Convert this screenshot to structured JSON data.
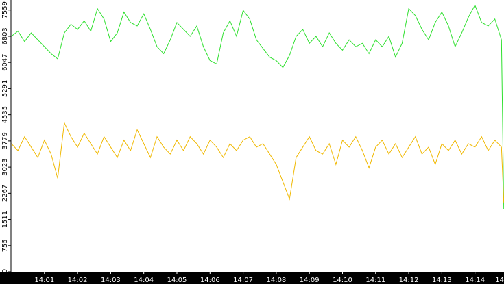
{
  "chart_data": {
    "type": "line",
    "x": [
      0,
      0.2,
      0.4,
      0.6,
      0.8,
      1.0,
      1.2,
      1.4,
      1.6,
      1.8,
      2.0,
      2.2,
      2.4,
      2.6,
      2.8,
      3.0,
      3.2,
      3.4,
      3.6,
      3.8,
      4.0,
      4.2,
      4.4,
      4.6,
      4.8,
      5.0,
      5.2,
      5.4,
      5.6,
      5.8,
      6.0,
      6.2,
      6.4,
      6.6,
      6.8,
      7.0,
      7.2,
      7.4,
      7.6,
      7.8,
      8.0,
      8.2,
      8.4,
      8.6,
      8.8,
      9.0,
      9.2,
      9.4,
      9.6,
      9.8,
      10.0,
      10.2,
      10.4,
      10.6,
      10.8,
      11.0,
      11.2,
      11.4,
      11.6,
      11.8,
      12.0,
      12.2,
      12.4,
      12.6,
      12.8,
      13.0,
      13.2,
      13.4,
      13.6,
      13.8,
      14.0,
      14.2,
      14.4,
      14.6,
      14.8,
      14.87
    ],
    "series": [
      {
        "color": "#2ee02e",
        "values": [
          6800,
          6950,
          6650,
          6900,
          6700,
          6500,
          6300,
          6150,
          6900,
          7150,
          7000,
          7250,
          6950,
          7600,
          7300,
          6650,
          6900,
          7500,
          7200,
          7100,
          7450,
          7000,
          6500,
          6300,
          6700,
          7200,
          7000,
          6800,
          7100,
          6500,
          6100,
          6000,
          6900,
          7250,
          6800,
          7550,
          7300,
          6700,
          6450,
          6200,
          6100,
          5900,
          6250,
          6800,
          7000,
          6600,
          6800,
          6500,
          6900,
          6600,
          6400,
          6700,
          6500,
          6600,
          6300,
          6700,
          6500,
          6800,
          6200,
          6600,
          7600,
          7400,
          7000,
          6700,
          7200,
          7500,
          7100,
          6500,
          6900,
          7350,
          7700,
          7200,
          7100,
          7300,
          6700,
          1800
        ]
      },
      {
        "color": "#f0b800",
        "values": [
          3700,
          3500,
          3900,
          3600,
          3300,
          3800,
          3400,
          2700,
          4300,
          3900,
          3600,
          4000,
          3700,
          3400,
          3900,
          3600,
          3300,
          3800,
          3500,
          4100,
          3700,
          3300,
          3900,
          3600,
          3400,
          3800,
          3500,
          3900,
          3700,
          3400,
          3800,
          3600,
          3300,
          3700,
          3500,
          3800,
          3900,
          3600,
          3700,
          3400,
          3100,
          2600,
          2100,
          3300,
          3600,
          3900,
          3500,
          3400,
          3700,
          3100,
          3800,
          3600,
          3900,
          3500,
          3000,
          3600,
          3800,
          3400,
          3700,
          3300,
          3600,
          3900,
          3400,
          3600,
          3100,
          3700,
          3500,
          3800,
          3400,
          3700,
          3600,
          3900,
          3500,
          3800,
          3600,
          2000
        ]
      }
    ],
    "xlim": [
      0,
      14.87
    ],
    "xticks": [
      {
        "value": 1,
        "label": "14:01"
      },
      {
        "value": 2,
        "label": "14:02"
      },
      {
        "value": 3,
        "label": "14:03"
      },
      {
        "value": 4,
        "label": "14:04"
      },
      {
        "value": 5,
        "label": "14:05"
      },
      {
        "value": 6,
        "label": "14:06"
      },
      {
        "value": 7,
        "label": "14:07"
      },
      {
        "value": 8,
        "label": "14:08"
      },
      {
        "value": 9,
        "label": "14:09"
      },
      {
        "value": 10,
        "label": "14:10"
      },
      {
        "value": 11,
        "label": "14:11"
      },
      {
        "value": 12,
        "label": "14:12"
      },
      {
        "value": 13,
        "label": "14:13"
      },
      {
        "value": 14,
        "label": "14:14"
      },
      {
        "value": 15,
        "label": "14"
      }
    ],
    "ylim": [
      0,
      7850
    ],
    "yticks": [
      0,
      755,
      1511,
      2267,
      3023,
      3779,
      4535,
      5291,
      6047,
      6803,
      7559
    ]
  }
}
